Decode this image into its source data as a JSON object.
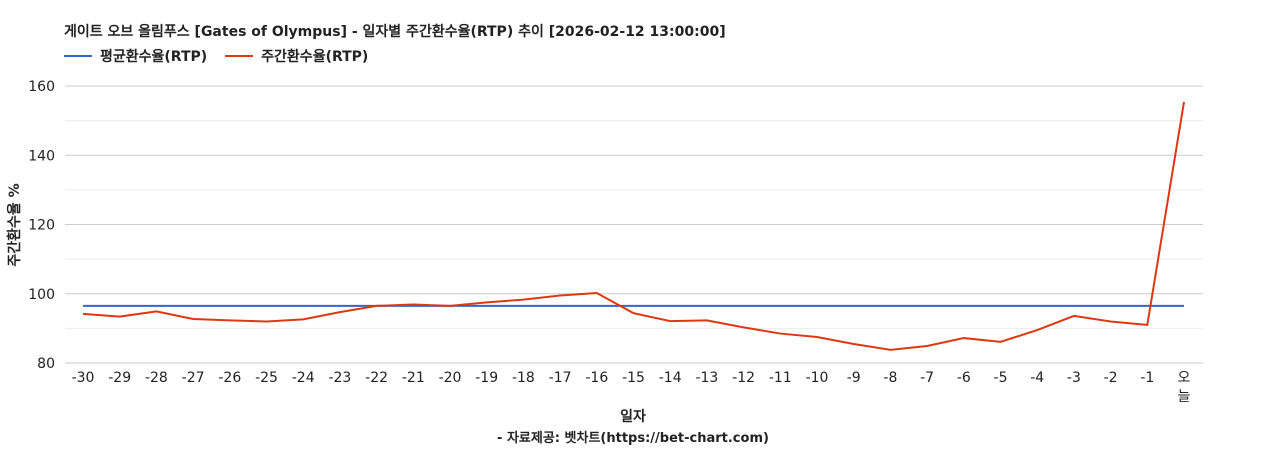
{
  "chart_data": {
    "type": "line",
    "title": "게이트 오브 올림푸스 [Gates of Olympus] - 일자별 주간환수율(RTP) 추이 [2026-02-12 13:00:00]",
    "xlabel": "일자",
    "ylabel": "주간환수율 %",
    "source": "- 자료제공: 벳차트(https://bet-chart.com)",
    "ylim": [
      80,
      160
    ],
    "yticks": [
      80,
      100,
      120,
      140,
      160
    ],
    "grid": true,
    "legend_position": "top-left",
    "categories": [
      "-30",
      "-29",
      "-28",
      "-27",
      "-26",
      "-25",
      "-24",
      "-23",
      "-22",
      "-21",
      "-20",
      "-19",
      "-18",
      "-17",
      "-16",
      "-15",
      "-14",
      "-13",
      "-12",
      "-11",
      "-10",
      "-9",
      "-8",
      "-7",
      "-6",
      "-5",
      "-4",
      "-3",
      "-2",
      "-1",
      "오늘"
    ],
    "series": [
      {
        "name": "평균환수율(RTP)",
        "color": "#3366cc",
        "values": [
          96.5,
          96.5,
          96.5,
          96.5,
          96.5,
          96.5,
          96.5,
          96.5,
          96.5,
          96.5,
          96.5,
          96.5,
          96.5,
          96.5,
          96.5,
          96.5,
          96.5,
          96.5,
          96.5,
          96.5,
          96.5,
          96.5,
          96.5,
          96.5,
          96.5,
          96.5,
          96.5,
          96.5,
          96.5,
          96.5,
          96.5
        ]
      },
      {
        "name": "주간환수율(RTP)",
        "color": "#dc3912",
        "values": [
          94.2,
          93.4,
          94.9,
          92.7,
          92.3,
          92.0,
          92.6,
          94.7,
          96.5,
          96.9,
          96.5,
          97.5,
          98.3,
          99.5,
          100.2,
          94.4,
          92.1,
          92.3,
          90.3,
          88.5,
          87.5,
          85.5,
          83.8,
          84.9,
          87.2,
          86.1,
          89.5,
          93.6,
          92.0,
          91.0,
          155.4
        ]
      }
    ]
  }
}
